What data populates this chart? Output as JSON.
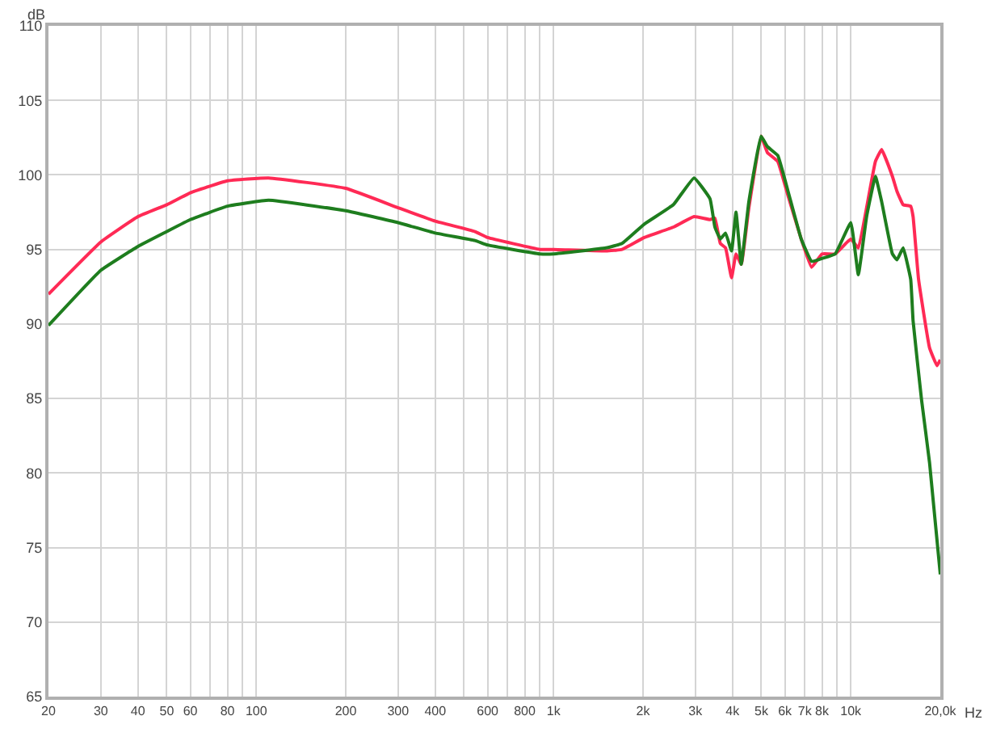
{
  "chart_data": {
    "type": "line",
    "xlabel": "Hz",
    "ylabel": "dB",
    "log": "x",
    "grid": true,
    "legend": false,
    "marker": "none",
    "line_style": "solid",
    "xlim": [
      20,
      20000
    ],
    "ylim": [
      65,
      110
    ],
    "xticks": [
      20,
      30,
      40,
      50,
      60,
      {
        "value": 70,
        "label": null
      },
      80,
      {
        "value": 90,
        "label": null
      },
      100,
      200,
      300,
      400,
      {
        "value": 500,
        "label": null
      },
      600,
      {
        "value": 700,
        "label": null
      },
      800,
      {
        "value": 900,
        "label": null
      },
      {
        "value": 1000,
        "label": "1k"
      },
      {
        "value": 2000,
        "label": "2k"
      },
      {
        "value": 3000,
        "label": "3k"
      },
      {
        "value": 4000,
        "label": "4k"
      },
      {
        "value": 5000,
        "label": "5k"
      },
      {
        "value": 6000,
        "label": "6k"
      },
      {
        "value": 7000,
        "label": "7k"
      },
      {
        "value": 8000,
        "label": "8k"
      },
      {
        "value": 9000,
        "label": null
      },
      {
        "value": 10000,
        "label": "10k"
      },
      {
        "value": 20000,
        "label": "20,0k"
      }
    ],
    "yticks": [
      65,
      70,
      75,
      80,
      85,
      90,
      95,
      100,
      105,
      110
    ],
    "series": [
      {
        "color": "#ff2a55",
        "x": [
          20,
          30,
          40,
          50,
          60,
          80,
          110,
          200,
          300,
          400,
          544,
          600,
          900,
          1000,
          1500,
          1700,
          2020,
          2530,
          2970,
          3360,
          3490,
          3640,
          3790,
          3970,
          4110,
          4280,
          4540,
          4990,
          5240,
          5680,
          6150,
          6810,
          7380,
          8000,
          8860,
          10000,
          10600,
          11300,
          12100,
          12700,
          13800,
          14300,
          15000,
          15900,
          16200,
          16900,
          18400,
          19500,
          20000
        ],
        "values": [
          92.0,
          95.5,
          97.2,
          98.0,
          98.8,
          99.6,
          99.8,
          99.1,
          97.8,
          96.9,
          96.2,
          95.8,
          95.0,
          95.0,
          94.9,
          95.0,
          95.8,
          96.5,
          97.2,
          97.0,
          97.1,
          95.4,
          95.1,
          93.1,
          94.7,
          94.0,
          97.8,
          102.6,
          101.5,
          100.9,
          98.6,
          95.7,
          93.8,
          94.7,
          94.7,
          95.7,
          95.1,
          97.8,
          100.9,
          101.7,
          99.9,
          98.9,
          98.0,
          97.9,
          97.2,
          93.0,
          88.4,
          87.2,
          87.6
        ]
      },
      {
        "color": "#1e7d1e",
        "x": [
          20,
          30,
          40,
          50,
          60,
          80,
          110,
          200,
          300,
          400,
          544,
          600,
          900,
          1000,
          1500,
          1700,
          2020,
          2530,
          2970,
          3360,
          3490,
          3640,
          3790,
          3970,
          4110,
          4280,
          4540,
          4990,
          5240,
          5680,
          6150,
          6810,
          7380,
          8000,
          8860,
          10000,
          10600,
          11300,
          12100,
          12700,
          13800,
          14300,
          15000,
          15900,
          16200,
          17300,
          18400,
          20000
        ],
        "values": [
          89.9,
          93.6,
          95.2,
          96.2,
          97.0,
          97.9,
          98.3,
          97.6,
          96.8,
          96.1,
          95.6,
          95.3,
          94.7,
          94.7,
          95.1,
          95.4,
          96.7,
          98.0,
          99.8,
          98.4,
          96.5,
          95.7,
          96.1,
          94.9,
          97.5,
          94.0,
          98.2,
          102.6,
          101.9,
          101.3,
          98.9,
          95.7,
          94.2,
          94.4,
          94.7,
          96.8,
          93.3,
          97.2,
          99.9,
          98.2,
          94.7,
          94.3,
          95.1,
          93.0,
          90.2,
          84.9,
          80.7,
          73.2
        ]
      }
    ]
  }
}
